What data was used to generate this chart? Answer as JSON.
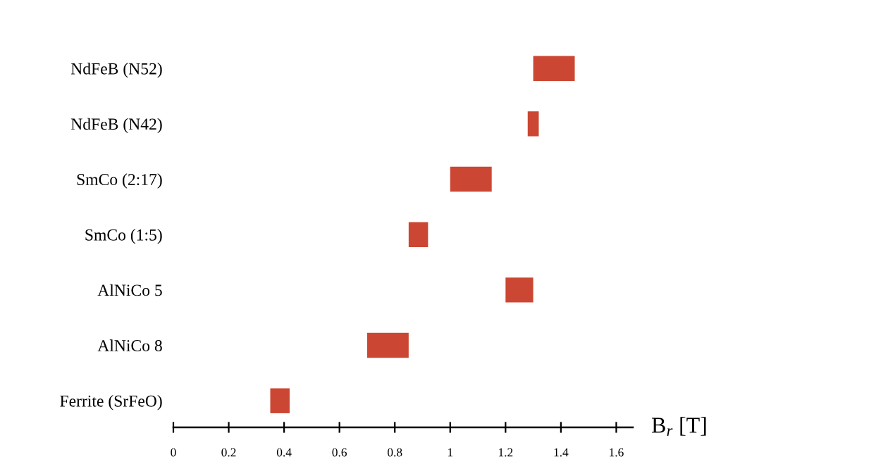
{
  "chart_data": {
    "type": "bar",
    "orientation": "horizontal",
    "categories": [
      "NdFeB (N52)",
      "NdFeB (N42)",
      "SmCo (2:17)",
      "SmCo (1:5)",
      "AlNiCo 5",
      "AlNiCo 8",
      "Ferrite (SrFeO)"
    ],
    "base": [
      1.3,
      1.28,
      1.0,
      0.85,
      1.2,
      0.7,
      0.35
    ],
    "values": [
      0.15,
      0.04,
      0.15,
      0.07,
      0.1,
      0.15,
      0.07
    ],
    "color": "#cb4733",
    "xlabel": "B$_{r}$ [T]",
    "xlim": [
      0,
      1.66
    ],
    "xticks": [
      0,
      0.2,
      0.4,
      0.6,
      0.8,
      1,
      1.2,
      1.4,
      1.6
    ]
  }
}
